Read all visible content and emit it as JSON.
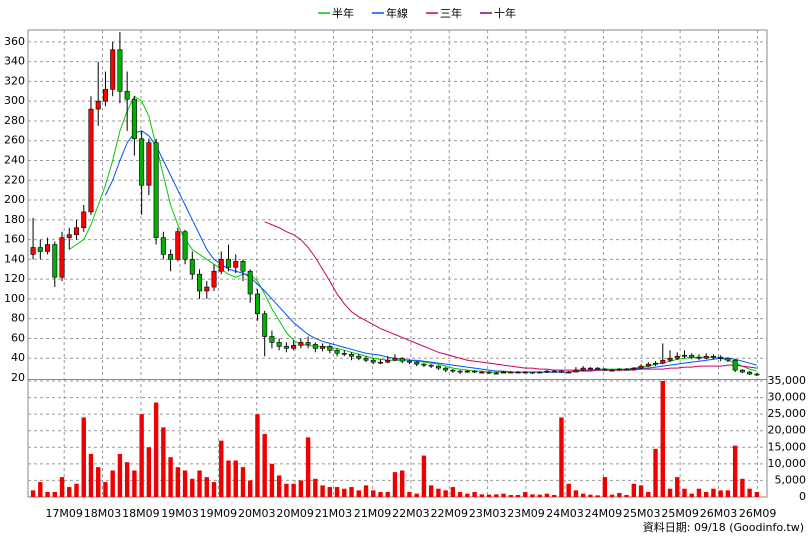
{
  "chart_data": {
    "type": "candlestick",
    "grid": true,
    "up_color": "#ff0000",
    "down_color": "#00b000",
    "volume_color": "#ee0000",
    "footer": "資料日期: 09/18 (Goodinfo.tw)",
    "xlim": [
      -0.7,
      101.4
    ],
    "xticks": [
      {
        "value": 4.3,
        "label": "17M09"
      },
      {
        "value": 9.6,
        "label": "18M03"
      },
      {
        "value": 14.9,
        "label": "18M09"
      },
      {
        "value": 20.3,
        "label": "19M03"
      },
      {
        "value": 25.6,
        "label": "19M09"
      },
      {
        "value": 30.9,
        "label": "20M03"
      },
      {
        "value": 36.2,
        "label": "20M09"
      },
      {
        "value": 41.5,
        "label": "21M03"
      },
      {
        "value": 46.9,
        "label": "21M09"
      },
      {
        "value": 52.2,
        "label": "22M03"
      },
      {
        "value": 57.5,
        "label": "22M09"
      },
      {
        "value": 62.8,
        "label": "23M03"
      },
      {
        "value": 68.1,
        "label": "23M09"
      },
      {
        "value": 73.5,
        "label": "24M03"
      },
      {
        "value": 78.8,
        "label": "24M09"
      },
      {
        "value": 84.1,
        "label": "25M03"
      },
      {
        "value": 89.4,
        "label": "25M09"
      },
      {
        "value": 94.7,
        "label": "26M03"
      },
      {
        "value": 100.1,
        "label": "26M09"
      }
    ],
    "ylim": [
      20,
      372
    ],
    "yticks": [
      20,
      40,
      60,
      80,
      100,
      120,
      140,
      160,
      180,
      200,
      220,
      240,
      260,
      280,
      300,
      320,
      340,
      360
    ],
    "y2lim": [
      0,
      35000
    ],
    "y2ticks": [
      0,
      {
        "value": 5000,
        "label": "5,000"
      },
      {
        "value": 10000,
        "label": "10,000"
      },
      {
        "value": 15000,
        "label": "15,000"
      },
      {
        "value": 20000,
        "label": "20,000"
      },
      {
        "value": 25000,
        "label": "25,000"
      },
      {
        "value": 30000,
        "label": "30,000"
      },
      {
        "value": 35000,
        "label": "35,000"
      }
    ],
    "ohlc": [
      [
        145,
        182,
        140,
        152
      ],
      [
        152,
        160,
        140,
        148
      ],
      [
        148,
        162,
        145,
        155
      ],
      [
        155,
        158,
        112,
        122
      ],
      [
        122,
        168,
        118,
        162
      ],
      [
        162,
        172,
        150,
        165
      ],
      [
        165,
        180,
        160,
        172
      ],
      [
        172,
        195,
        168,
        188
      ],
      [
        188,
        305,
        185,
        292
      ],
      [
        292,
        340,
        275,
        300
      ],
      [
        300,
        330,
        295,
        312
      ],
      [
        312,
        360,
        305,
        352
      ],
      [
        352,
        370,
        298,
        310
      ],
      [
        310,
        330,
        270,
        302
      ],
      [
        302,
        305,
        245,
        262
      ],
      [
        262,
        270,
        185,
        215
      ],
      [
        215,
        262,
        205,
        258
      ],
      [
        258,
        262,
        155,
        162
      ],
      [
        162,
        168,
        140,
        145
      ],
      [
        145,
        150,
        128,
        140
      ],
      [
        140,
        172,
        138,
        168
      ],
      [
        168,
        170,
        135,
        140
      ],
      [
        140,
        148,
        120,
        125
      ],
      [
        125,
        130,
        100,
        108
      ],
      [
        108,
        118,
        100,
        112
      ],
      [
        112,
        135,
        108,
        128
      ],
      [
        128,
        148,
        125,
        140
      ],
      [
        140,
        155,
        128,
        132
      ],
      [
        132,
        145,
        126,
        138
      ],
      [
        138,
        140,
        118,
        128
      ],
      [
        128,
        130,
        96,
        105
      ],
      [
        105,
        110,
        78,
        85
      ],
      [
        85,
        88,
        42,
        62
      ],
      [
        62,
        68,
        50,
        56
      ],
      [
        56,
        60,
        48,
        52
      ],
      [
        52,
        56,
        46,
        50
      ],
      [
        50,
        58,
        48,
        53
      ],
      [
        53,
        60,
        50,
        56
      ],
      [
        56,
        62,
        50,
        54
      ],
      [
        54,
        56,
        46,
        50
      ],
      [
        50,
        55,
        47,
        52
      ],
      [
        52,
        54,
        45,
        48
      ],
      [
        48,
        50,
        42,
        45
      ],
      [
        45,
        48,
        42,
        44
      ],
      [
        44,
        46,
        38,
        42
      ],
      [
        42,
        44,
        38,
        40
      ],
      [
        40,
        42,
        36,
        38
      ],
      [
        38,
        40,
        34,
        36
      ],
      [
        36,
        39,
        34,
        36
      ],
      [
        36,
        42,
        35,
        38
      ],
      [
        38,
        44,
        37,
        40
      ],
      [
        40,
        41,
        35,
        37
      ],
      [
        37,
        39,
        34,
        36
      ],
      [
        36,
        37,
        32,
        34
      ],
      [
        34,
        35,
        31,
        33
      ],
      [
        33,
        34,
        30,
        32
      ],
      [
        32,
        33,
        28,
        30
      ],
      [
        30,
        31,
        26,
        28
      ],
      [
        28,
        29,
        25,
        27
      ],
      [
        27,
        28,
        24,
        26
      ],
      [
        26,
        28,
        25,
        27
      ],
      [
        27,
        28,
        25,
        26
      ],
      [
        26,
        27,
        25,
        26
      ],
      [
        26,
        27,
        24,
        25
      ],
      [
        25,
        26,
        24,
        25
      ],
      [
        25,
        27,
        25,
        26
      ],
      [
        26,
        27,
        25,
        26
      ],
      [
        26,
        27,
        25,
        26
      ],
      [
        26,
        27,
        25,
        26
      ],
      [
        26,
        26,
        24,
        25
      ],
      [
        25,
        27,
        25,
        26
      ],
      [
        26,
        28,
        25,
        27
      ],
      [
        27,
        28,
        26,
        27
      ],
      [
        27,
        28,
        25,
        26
      ],
      [
        26,
        27,
        25,
        26
      ],
      [
        26,
        31,
        26,
        28
      ],
      [
        28,
        32,
        27,
        30
      ],
      [
        30,
        31,
        28,
        30
      ],
      [
        30,
        31,
        28,
        29
      ],
      [
        29,
        30,
        27,
        28
      ],
      [
        28,
        29,
        27,
        28
      ],
      [
        28,
        30,
        27,
        29
      ],
      [
        29,
        30,
        28,
        29
      ],
      [
        29,
        31,
        28,
        30
      ],
      [
        30,
        34,
        29,
        32
      ],
      [
        32,
        36,
        31,
        34
      ],
      [
        34,
        37,
        32,
        35
      ],
      [
        35,
        55,
        34,
        38
      ],
      [
        38,
        48,
        36,
        40
      ],
      [
        40,
        46,
        38,
        42
      ],
      [
        42,
        48,
        40,
        43
      ],
      [
        43,
        45,
        39,
        41
      ],
      [
        41,
        44,
        38,
        40
      ],
      [
        40,
        45,
        39,
        42
      ],
      [
        42,
        44,
        39,
        41
      ],
      [
        41,
        43,
        37,
        40
      ],
      [
        40,
        41,
        36,
        38
      ],
      [
        38,
        39,
        26,
        28
      ],
      [
        28,
        29,
        25,
        26
      ],
      [
        26,
        27,
        23,
        24
      ],
      [
        24,
        25,
        22,
        23
      ]
    ],
    "volume": [
      2000,
      4500,
      1500,
      1500,
      6000,
      3000,
      4000,
      24000,
      13000,
      9000,
      4500,
      8000,
      13000,
      10500,
      8000,
      25000,
      15000,
      28500,
      21000,
      12000,
      9000,
      8000,
      5500,
      8000,
      6000,
      4500,
      17000,
      11000,
      11000,
      9000,
      5000,
      25000,
      19000,
      10000,
      6500,
      4000,
      4000,
      5000,
      18000,
      5500,
      3500,
      3000,
      3000,
      2500,
      3000,
      2000,
      3500,
      2000,
      1500,
      1500,
      7500,
      8000,
      1500,
      1000,
      12500,
      3500,
      2500,
      2000,
      3000,
      1500,
      1000,
      1500,
      800,
      700,
      800,
      1000,
      600,
      600,
      1500,
      800,
      700,
      1000,
      600,
      24000,
      4000,
      2000,
      1000,
      700,
      500,
      6000,
      700,
      1200,
      600,
      4000,
      3500,
      1500,
      14500,
      35000,
      2500,
      6000,
      2500,
      1000,
      2500,
      1500,
      2500,
      2000,
      2000,
      15500,
      5500,
      2500,
      1500
    ],
    "series": [
      {
        "name": "半年",
        "color": "#00cc00",
        "values": [
          null,
          null,
          null,
          null,
          null,
          150,
          155,
          160,
          175,
          195,
          215,
          240,
          270,
          290,
          305,
          300,
          285,
          255,
          225,
          195,
          175,
          160,
          150,
          145,
          140,
          135,
          130,
          125,
          122,
          125,
          125,
          118,
          105,
          90,
          78,
          66,
          58,
          54,
          53,
          52,
          52,
          51,
          50,
          48,
          46,
          44,
          42,
          40,
          39,
          38,
          38,
          38,
          38,
          37,
          36,
          35,
          34,
          32,
          30,
          29,
          28,
          27,
          27,
          26,
          26,
          26,
          26,
          26,
          26,
          26,
          26,
          26,
          26,
          26,
          26,
          27,
          28,
          28,
          29,
          29,
          29,
          29,
          29,
          30,
          31,
          32,
          34,
          35,
          37,
          39,
          40,
          41,
          41,
          41,
          41,
          40,
          38,
          35,
          32,
          29,
          27
        ]
      },
      {
        "name": "年線",
        "color": "#0050ff",
        "values": [
          null,
          null,
          null,
          null,
          null,
          null,
          null,
          null,
          null,
          null,
          205,
          220,
          240,
          258,
          268,
          270,
          265,
          255,
          240,
          225,
          210,
          195,
          180,
          165,
          150,
          140,
          135,
          130,
          128,
          126,
          122,
          115,
          108,
          100,
          92,
          84,
          76,
          70,
          64,
          60,
          57,
          55,
          53,
          51,
          49,
          47,
          45,
          44,
          43,
          41,
          40,
          39,
          38,
          38,
          37,
          36,
          35,
          34,
          33,
          32,
          31,
          30,
          29,
          28,
          27,
          27,
          26,
          26,
          26,
          26,
          26,
          26,
          26,
          26,
          26,
          27,
          27,
          27,
          28,
          28,
          28,
          28,
          29,
          29,
          30,
          30,
          31,
          32,
          33,
          34,
          35,
          36,
          37,
          38,
          39,
          40,
          40,
          39,
          37,
          35,
          33
        ]
      },
      {
        "name": "三年",
        "color": "#cc0066",
        "values": [
          null,
          null,
          null,
          null,
          null,
          null,
          null,
          null,
          null,
          null,
          null,
          null,
          null,
          null,
          null,
          null,
          null,
          null,
          null,
          null,
          null,
          null,
          null,
          null,
          null,
          null,
          null,
          null,
          null,
          null,
          null,
          null,
          178,
          175,
          172,
          168,
          165,
          160,
          152,
          142,
          130,
          118,
          105,
          95,
          87,
          82,
          78,
          74,
          70,
          67,
          64,
          61,
          58,
          55,
          52,
          49,
          46,
          44,
          42,
          40,
          38,
          37,
          36,
          35,
          34,
          33,
          32,
          31,
          30,
          30,
          29,
          29,
          28,
          28,
          28,
          28,
          28,
          28,
          28,
          28,
          28,
          28,
          28,
          28,
          29,
          29,
          29,
          29,
          30,
          30,
          31,
          31,
          32,
          32,
          32,
          32,
          33,
          33,
          32,
          31,
          30
        ]
      },
      {
        "name": "十年",
        "color": "#800080"
      }
    ]
  }
}
